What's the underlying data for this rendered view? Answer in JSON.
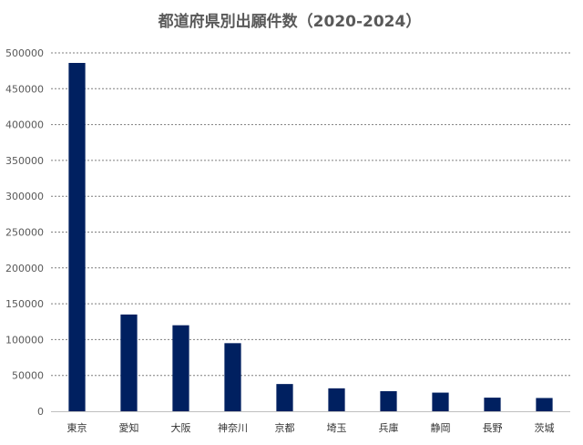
{
  "chart_data": {
    "type": "bar",
    "title": "都道府県別出願件数（2020-2024）",
    "xlabel": "",
    "ylabel": "",
    "categories": [
      "東京",
      "愛知",
      "大阪",
      "神奈川",
      "京都",
      "埼玉",
      "兵庫",
      "静岡",
      "長野",
      "茨城"
    ],
    "values": [
      486000,
      135000,
      120000,
      95000,
      38000,
      32000,
      28000,
      26000,
      19000,
      18500
    ],
    "ylim": [
      0,
      500000
    ],
    "yticks": [
      0,
      50000,
      100000,
      150000,
      200000,
      250000,
      300000,
      350000,
      400000,
      450000,
      500000
    ],
    "grid": true,
    "legend": "none",
    "bar_color": "#002060"
  }
}
